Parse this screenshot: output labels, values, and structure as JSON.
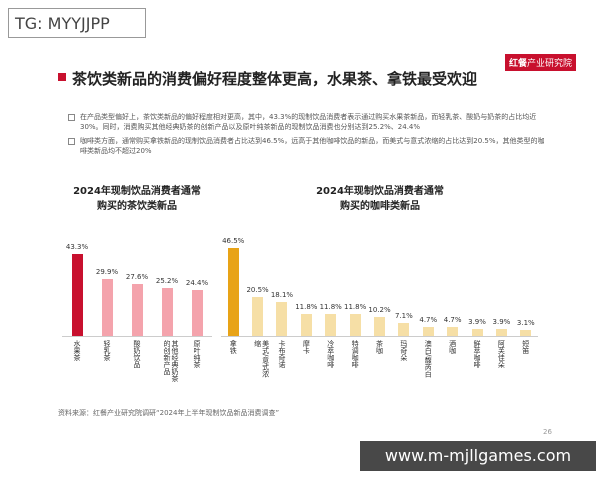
{
  "overlay_tag": "TG: MYYJJPP",
  "title": "茶饮类新品的消费偏好程度整体更高，水果茶、拿铁最受欢迎",
  "logo": [
    "红餐",
    "产业研究院"
  ],
  "bullets": [
    "在产品类型偏好上，茶饮类新品的偏好程度相对更高，其中，43.3%的现制饮品消费者表示通过购买水果茶新品，而轻乳茶、酸奶与奶茶的占比均近30%。同时，消费购买其他经典奶茶的创新产品以及原叶纯茶新品的现制饮品消费也分别达到25.2%、24.4%",
    "咖啡类方面，通常购买拿铁新品的现制饮品消费者占比达到46.5%，远高于其他咖啡饮品的新品，而美式与意式浓缩的占比达到20.5%，其他类型的咖啡类新品均不超过20%"
  ],
  "chart_data": [
    {
      "type": "bar",
      "title": [
        "2024年现制饮品消费者通常",
        "购买的茶饮类新品"
      ],
      "categories": [
        "水果茶",
        "轻乳茶",
        "酸奶饮品",
        "其他经典奶茶的创新产品",
        "原叶纯茶"
      ],
      "values": [
        43.3,
        29.9,
        27.6,
        25.2,
        24.4
      ],
      "value_labels": [
        "43.3%",
        "29.9%",
        "27.6%",
        "25.2%",
        "24.4%"
      ],
      "colors": [
        "#c8102e",
        "#f4a3ac",
        "#f4a3ac",
        "#f4a3ac",
        "#f4a3ac"
      ]
    },
    {
      "type": "bar",
      "title": [
        "2024年现制饮品消费者通常",
        "购买的咖啡类新品"
      ],
      "categories": [
        "拿铁",
        "美式/意式浓缩",
        "卡布奇诺",
        "摩卡",
        "冷萃咖啡",
        "特调咖啡",
        "茶咖",
        "玛奇朵",
        "澳白/馥芮白",
        "酒咖",
        "鲜萃咖啡",
        "阿芙佳朵",
        "短笛"
      ],
      "values": [
        46.5,
        20.5,
        18.1,
        11.8,
        11.8,
        11.8,
        10.2,
        7.1,
        4.7,
        4.7,
        3.9,
        3.9,
        3.1
      ],
      "value_labels": [
        "46.5%",
        "20.5%",
        "18.1%",
        "11.8%",
        "11.8%",
        "11.8%",
        "10.2%",
        "7.1%",
        "4.7%",
        "4.7%",
        "3.9%",
        "3.9%",
        "3.1%"
      ],
      "colors": [
        "#e8a317",
        "#f6dfa6",
        "#f6dfa6",
        "#f6dfa6",
        "#f6dfa6",
        "#f6dfa6",
        "#f6dfa6",
        "#f6dfa6",
        "#f6dfa6",
        "#f6dfa6",
        "#f6dfa6",
        "#f6dfa6",
        "#f6dfa6"
      ]
    }
  ],
  "source": "资料来源：红餐产业研究院调研“2024年上半年现制饮品新品消费调查”",
  "page_number": "26",
  "watermark_url": "www.m-mjllgames.com"
}
